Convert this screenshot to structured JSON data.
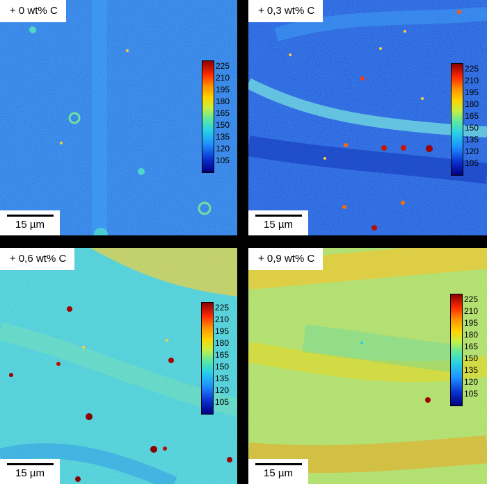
{
  "panels": [
    {
      "label": "+ 0 wt% C",
      "scale_bar": "15 µm"
    },
    {
      "label": "+ 0,3 wt% C",
      "scale_bar": "15 µm"
    },
    {
      "label": "+ 0,6 wt% C",
      "scale_bar": "15 µm"
    },
    {
      "label": "+ 0,9 wt% C",
      "scale_bar": "15 µm"
    }
  ],
  "colorbar_ticks": [
    "225",
    "210",
    "195",
    "180",
    "165",
    "150",
    "135",
    "120",
    "105"
  ],
  "colors": {
    "low": "#000080",
    "mid_blue": "#1e90ff",
    "mid_cyan": "#28d2e6",
    "mid_green": "#5fe8a0",
    "mid_yellow": "#ffd400",
    "high": "#8b0000",
    "separator": "#000000",
    "label_bg": "#ffffff"
  }
}
